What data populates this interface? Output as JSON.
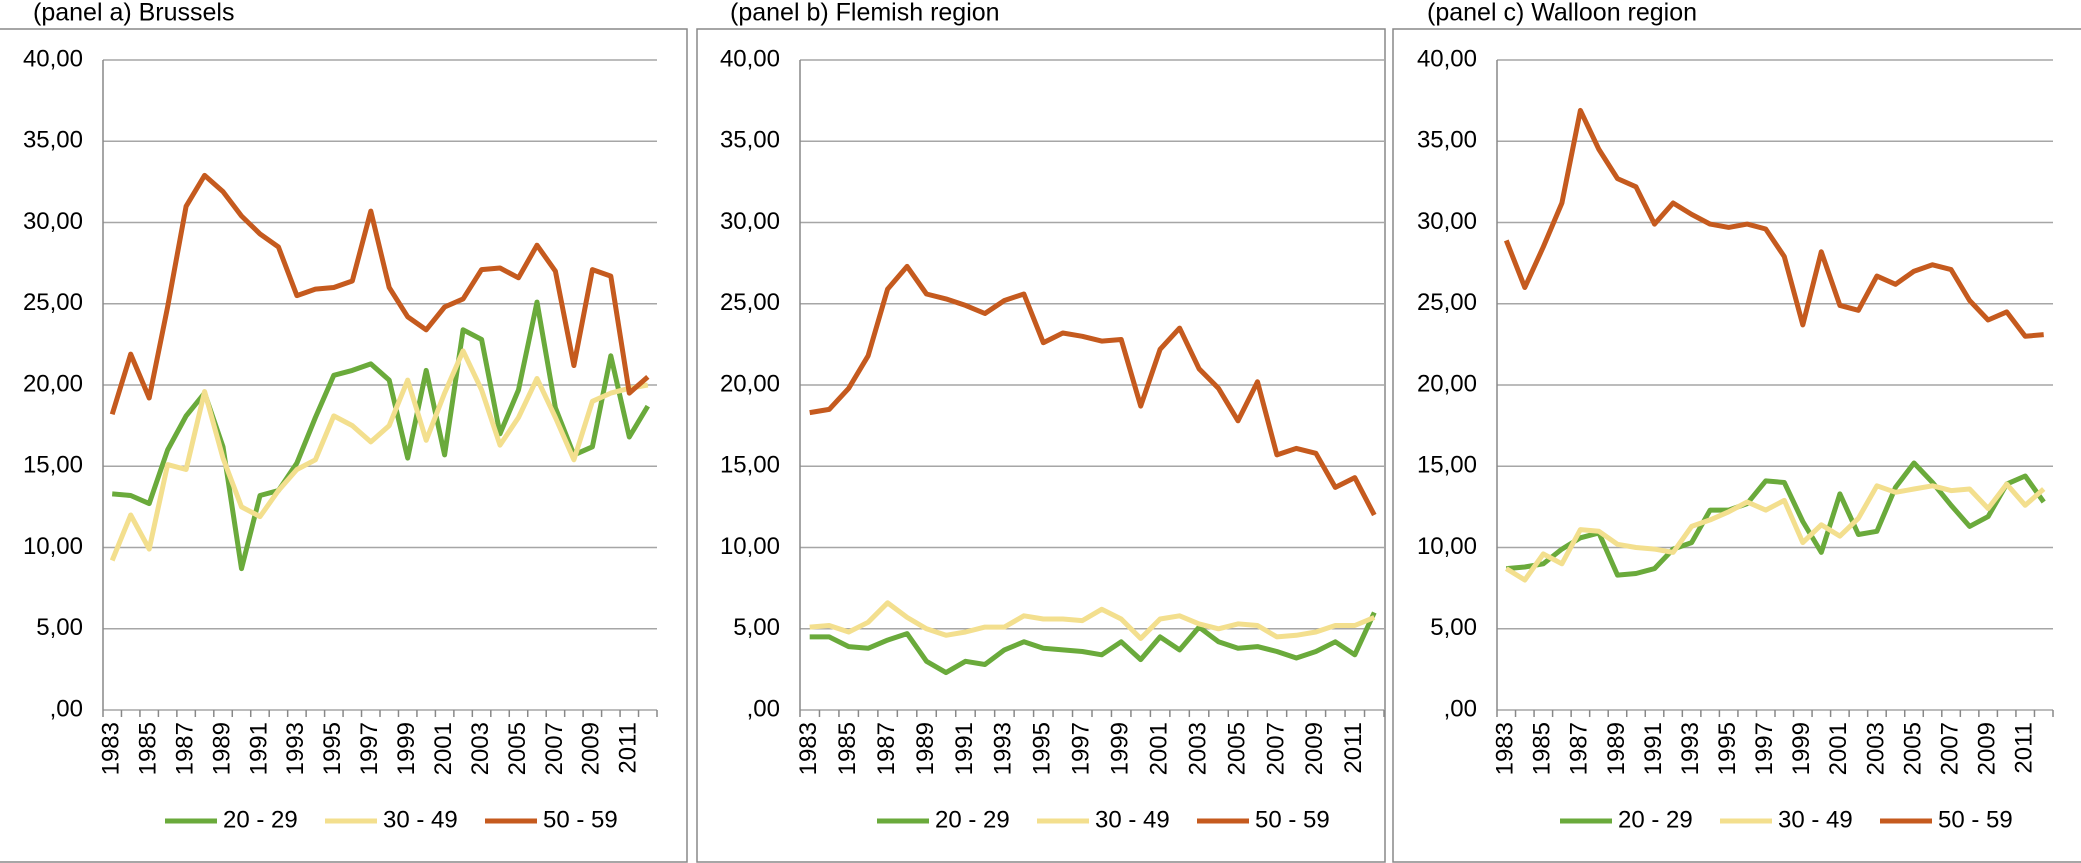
{
  "chart_data": [
    {
      "type": "line",
      "title": "(panel a) Brussels",
      "categories": [
        "1983",
        null,
        "1985",
        null,
        "1987",
        null,
        "1989",
        null,
        "1991",
        null,
        "1993",
        null,
        "1995",
        null,
        "1997",
        null,
        "1999",
        null,
        "2001",
        null,
        "2003",
        null,
        "2005",
        null,
        "2007",
        null,
        "2009",
        null,
        "2011",
        null
      ],
      "series": [
        {
          "name": "20 - 29",
          "color": "#6aaa3b",
          "values": [
            13.3,
            13.2,
            12.7,
            16.0,
            18.1,
            19.5,
            16.2,
            8.7,
            13.2,
            13.5,
            15.2,
            18.0,
            20.6,
            20.9,
            21.3,
            20.3,
            15.5,
            20.9,
            15.7,
            23.4,
            22.8,
            17.0,
            19.7,
            25.1,
            18.6,
            15.7,
            16.2,
            21.8,
            16.8,
            18.7
          ]
        },
        {
          "name": "30 - 49",
          "color": "#f3df8e",
          "values": [
            9.2,
            12.0,
            9.9,
            15.1,
            14.8,
            19.6,
            15.5,
            12.5,
            11.9,
            13.5,
            14.8,
            15.4,
            18.1,
            17.5,
            16.5,
            17.5,
            20.3,
            16.6,
            19.5,
            22.1,
            19.7,
            16.3,
            18.0,
            20.4,
            18.0,
            15.4,
            19.0,
            19.5,
            19.8,
            20.0
          ]
        },
        {
          "name": "50 - 59",
          "color": "#c55a1e",
          "values": [
            18.2,
            21.9,
            19.2,
            24.8,
            31.0,
            32.9,
            31.9,
            30.4,
            29.3,
            28.5,
            25.5,
            25.9,
            26.0,
            26.4,
            30.7,
            26.0,
            24.2,
            23.4,
            24.8,
            25.3,
            27.1,
            27.2,
            26.6,
            28.6,
            27.0,
            21.2,
            27.1,
            26.7,
            19.5,
            20.5
          ]
        }
      ],
      "ylim": [
        0,
        40
      ],
      "yticks": [
        {
          "value": 0,
          "label": ",00"
        },
        {
          "value": 5,
          "label": "5,00"
        },
        {
          "value": 10,
          "label": "10,00"
        },
        {
          "value": 15,
          "label": "15,00"
        },
        {
          "value": 20,
          "label": "20,00"
        },
        {
          "value": 25,
          "label": "25,00"
        },
        {
          "value": 30,
          "label": "30,00"
        },
        {
          "value": 35,
          "label": "35,00"
        },
        {
          "value": 40,
          "label": "40,00"
        }
      ],
      "grid": true,
      "legend": "bottom"
    },
    {
      "type": "line",
      "title": "(panel b) Flemish region",
      "categories": [
        "1983",
        null,
        "1985",
        null,
        "1987",
        null,
        "1989",
        null,
        "1991",
        null,
        "1993",
        null,
        "1995",
        null,
        "1997",
        null,
        "1999",
        null,
        "2001",
        null,
        "2003",
        null,
        "2005",
        null,
        "2007",
        null,
        "2009",
        null,
        "2011",
        null
      ],
      "series": [
        {
          "name": "20 - 29",
          "color": "#6aaa3b",
          "values": [
            4.5,
            4.5,
            3.9,
            3.8,
            4.3,
            4.7,
            3.0,
            2.3,
            3.0,
            2.8,
            3.7,
            4.2,
            3.8,
            3.7,
            3.6,
            3.4,
            4.2,
            3.1,
            4.5,
            3.7,
            5.1,
            4.2,
            3.8,
            3.9,
            3.6,
            3.2,
            3.6,
            4.2,
            3.4,
            6.0
          ]
        },
        {
          "name": "30 - 49",
          "color": "#f3df8e",
          "values": [
            5.1,
            5.2,
            4.8,
            5.4,
            6.6,
            5.7,
            5.0,
            4.6,
            4.8,
            5.1,
            5.1,
            5.8,
            5.6,
            5.6,
            5.5,
            6.2,
            5.6,
            4.4,
            5.6,
            5.8,
            5.3,
            5.0,
            5.3,
            5.2,
            4.5,
            4.6,
            4.8,
            5.2,
            5.2,
            5.7
          ]
        },
        {
          "name": "50 - 59",
          "color": "#c55a1e",
          "values": [
            18.3,
            18.5,
            19.8,
            21.8,
            25.9,
            27.3,
            25.6,
            25.3,
            24.9,
            24.4,
            25.2,
            25.6,
            22.6,
            23.2,
            23.0,
            22.7,
            22.8,
            18.7,
            22.2,
            23.5,
            21.0,
            19.8,
            17.8,
            20.2,
            15.7,
            16.1,
            15.8,
            13.7,
            14.3,
            12.0
          ]
        }
      ],
      "ylim": [
        0,
        40
      ],
      "yticks": [
        {
          "value": 0,
          "label": ",00"
        },
        {
          "value": 5,
          "label": "5,00"
        },
        {
          "value": 10,
          "label": "10,00"
        },
        {
          "value": 15,
          "label": "15,00"
        },
        {
          "value": 20,
          "label": "20,00"
        },
        {
          "value": 25,
          "label": "25,00"
        },
        {
          "value": 30,
          "label": "30,00"
        },
        {
          "value": 35,
          "label": "35,00"
        },
        {
          "value": 40,
          "label": "40,00"
        }
      ],
      "grid": true,
      "legend": "bottom"
    },
    {
      "type": "line",
      "title": "(panel c) Walloon region",
      "categories": [
        "1983",
        null,
        "1985",
        null,
        "1987",
        null,
        "1989",
        null,
        "1991",
        null,
        "1993",
        null,
        "1995",
        null,
        "1997",
        null,
        "1999",
        null,
        "2001",
        null,
        "2003",
        null,
        "2005",
        null,
        "2007",
        null,
        "2009",
        null,
        "2011",
        null
      ],
      "series": [
        {
          "name": "20 - 29",
          "color": "#6aaa3b",
          "values": [
            8.7,
            8.8,
            9.0,
            9.9,
            10.6,
            10.9,
            8.3,
            8.4,
            8.7,
            9.9,
            10.3,
            12.3,
            12.3,
            12.7,
            14.1,
            14.0,
            11.6,
            9.7,
            13.3,
            10.8,
            11.0,
            13.7,
            15.2,
            14.0,
            12.6,
            11.3,
            11.9,
            13.9,
            14.4,
            12.8
          ]
        },
        {
          "name": "30 - 49",
          "color": "#f3df8e",
          "values": [
            8.7,
            8.0,
            9.6,
            9.0,
            11.1,
            11.0,
            10.2,
            10.0,
            9.9,
            9.7,
            11.3,
            11.7,
            12.2,
            12.8,
            12.3,
            12.9,
            10.3,
            11.4,
            10.7,
            11.8,
            13.8,
            13.4,
            13.6,
            13.8,
            13.5,
            13.6,
            12.4,
            13.9,
            12.6,
            13.6
          ]
        },
        {
          "name": "50 - 59",
          "color": "#c55a1e",
          "values": [
            28.9,
            26.0,
            28.5,
            31.2,
            36.9,
            34.5,
            32.7,
            32.2,
            29.9,
            31.2,
            30.5,
            29.9,
            29.7,
            29.9,
            29.6,
            27.9,
            23.7,
            28.2,
            24.9,
            24.6,
            26.7,
            26.2,
            27.0,
            27.4,
            27.1,
            25.2,
            24.0,
            24.5,
            23.0,
            23.1
          ]
        }
      ],
      "ylim": [
        0,
        40
      ],
      "yticks": [
        {
          "value": 0,
          "label": ",00"
        },
        {
          "value": 5,
          "label": "5,00"
        },
        {
          "value": 10,
          "label": "10,00"
        },
        {
          "value": 15,
          "label": "15,00"
        },
        {
          "value": 20,
          "label": "20,00"
        },
        {
          "value": 25,
          "label": "25,00"
        },
        {
          "value": 30,
          "label": "30,00"
        },
        {
          "value": 35,
          "label": "35,00"
        },
        {
          "value": 40,
          "label": "40,00"
        }
      ],
      "grid": true,
      "legend": "bottom"
    }
  ]
}
